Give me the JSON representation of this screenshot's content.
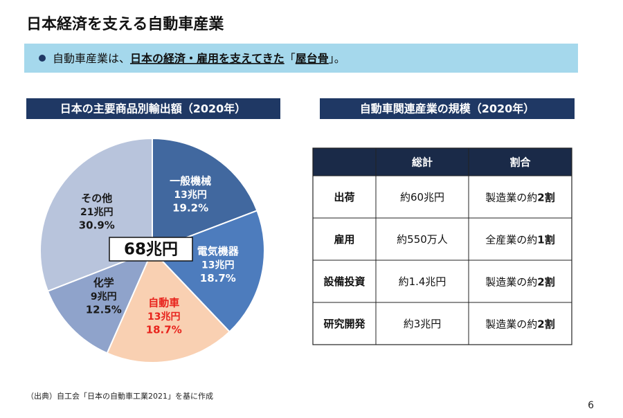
{
  "header": {
    "title": "日本経済を支える自動車産業"
  },
  "banner": {
    "parts": [
      "自動車産業は、",
      "日本の経済・雇用を支えてきた",
      "「",
      "屋台骨",
      "」。"
    ]
  },
  "chart_data": {
    "type": "pie",
    "title": "日本の主要商品別輸出額（2020年）",
    "categories": [
      "一般機械",
      "電気機器",
      "自動車",
      "化学",
      "その他"
    ],
    "amounts": [
      "13兆円",
      "13兆円",
      "13兆円",
      "9兆円",
      "21兆円"
    ],
    "values": [
      19.2,
      18.7,
      18.7,
      12.5,
      30.9
    ],
    "value_labels": [
      "19.2%",
      "18.7%",
      "18.7%",
      "12.5%",
      "30.9%"
    ],
    "colors": [
      "#41689f",
      "#4d7cbd",
      "#f9d0b2",
      "#8fa3cb",
      "#b8c4dc"
    ],
    "label_colors": [
      "#ffffff",
      "#ffffff",
      "#e8231c",
      "#1a1a1a",
      "#1a1a1a"
    ],
    "center_label": "68兆円"
  },
  "table": {
    "title": "自動車関連産業の規模（2020年）",
    "header": [
      "総計",
      "割合"
    ],
    "rows": [
      {
        "label": "出荷",
        "total": "約60兆円",
        "ratio": [
          "製造業の約",
          "2割"
        ]
      },
      {
        "label": "雇用",
        "total": "約550万人",
        "ratio": [
          "全産業の約",
          "1割"
        ]
      },
      {
        "label": "設備投資",
        "total": "約1.4兆円",
        "ratio": [
          "製造業の約",
          "2割"
        ]
      },
      {
        "label": "研究開発",
        "total": "約3兆円",
        "ratio": [
          "製造業の約",
          "2割"
        ]
      }
    ]
  },
  "footer": {
    "source": "（出典）自工会「日本の自動車工業2021」を基に作成",
    "page": "6"
  }
}
